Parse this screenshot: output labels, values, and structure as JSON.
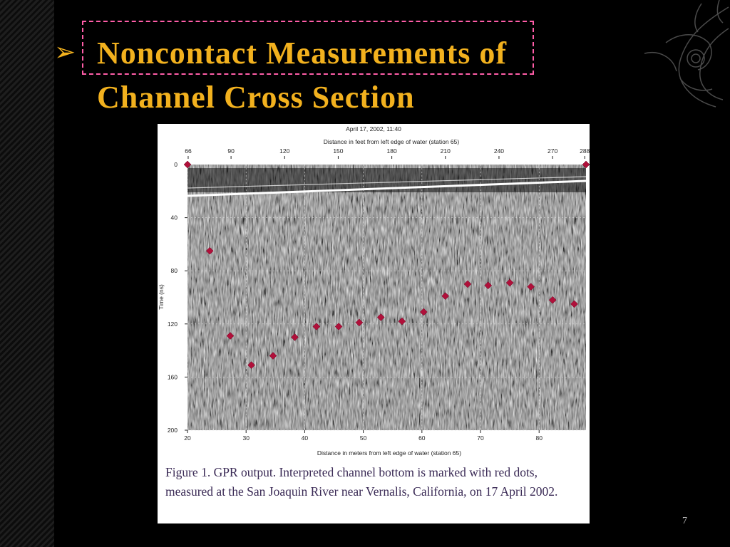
{
  "slide": {
    "title_line1": "Noncontact Measurements of",
    "title_line2": "Channel Cross Section",
    "bullet": "➢",
    "caption": "Figure 1. GPR output. Interpreted channel bottom is marked with red dots, measured at the San Joaquin River near Vernalis, California, on 17 April 2002.",
    "page_number": "7"
  },
  "colors": {
    "title": "#f2b11e",
    "dash": "#ff5da8",
    "marker": "#b0103a",
    "caption": "#3a2a55"
  },
  "chart_data": {
    "type": "scatter",
    "title": "April 17, 2002, 11:40",
    "top_xlabel": "Distance in feet from left edge of water (station 65)",
    "xlabel": "Distance in meters from left edge of water (station 65)",
    "ylabel": "Time (ns)",
    "xlim": [
      20,
      88
    ],
    "ylim": [
      0,
      200
    ],
    "y_inverted": true,
    "x_ticks": [
      20,
      30,
      40,
      50,
      60,
      70,
      80
    ],
    "y_ticks": [
      0,
      40,
      80,
      120,
      160,
      200
    ],
    "top_ticks": [
      66,
      90,
      120,
      150,
      180,
      210,
      240,
      270,
      288
    ],
    "background": "grayscale radargram",
    "points": [
      {
        "x": 20,
        "y": 0
      },
      {
        "x": 23.8,
        "y": 65
      },
      {
        "x": 27.3,
        "y": 129
      },
      {
        "x": 30.9,
        "y": 151
      },
      {
        "x": 34.6,
        "y": 144
      },
      {
        "x": 38.3,
        "y": 130
      },
      {
        "x": 42,
        "y": 122
      },
      {
        "x": 45.8,
        "y": 122
      },
      {
        "x": 49.3,
        "y": 119
      },
      {
        "x": 53,
        "y": 115
      },
      {
        "x": 56.6,
        "y": 118
      },
      {
        "x": 60.3,
        "y": 111
      },
      {
        "x": 64,
        "y": 99
      },
      {
        "x": 67.8,
        "y": 90
      },
      {
        "x": 71.3,
        "y": 91
      },
      {
        "x": 75,
        "y": 89
      },
      {
        "x": 78.6,
        "y": 92
      },
      {
        "x": 82.3,
        "y": 102
      },
      {
        "x": 86,
        "y": 105
      },
      {
        "x": 88,
        "y": 0
      }
    ]
  }
}
